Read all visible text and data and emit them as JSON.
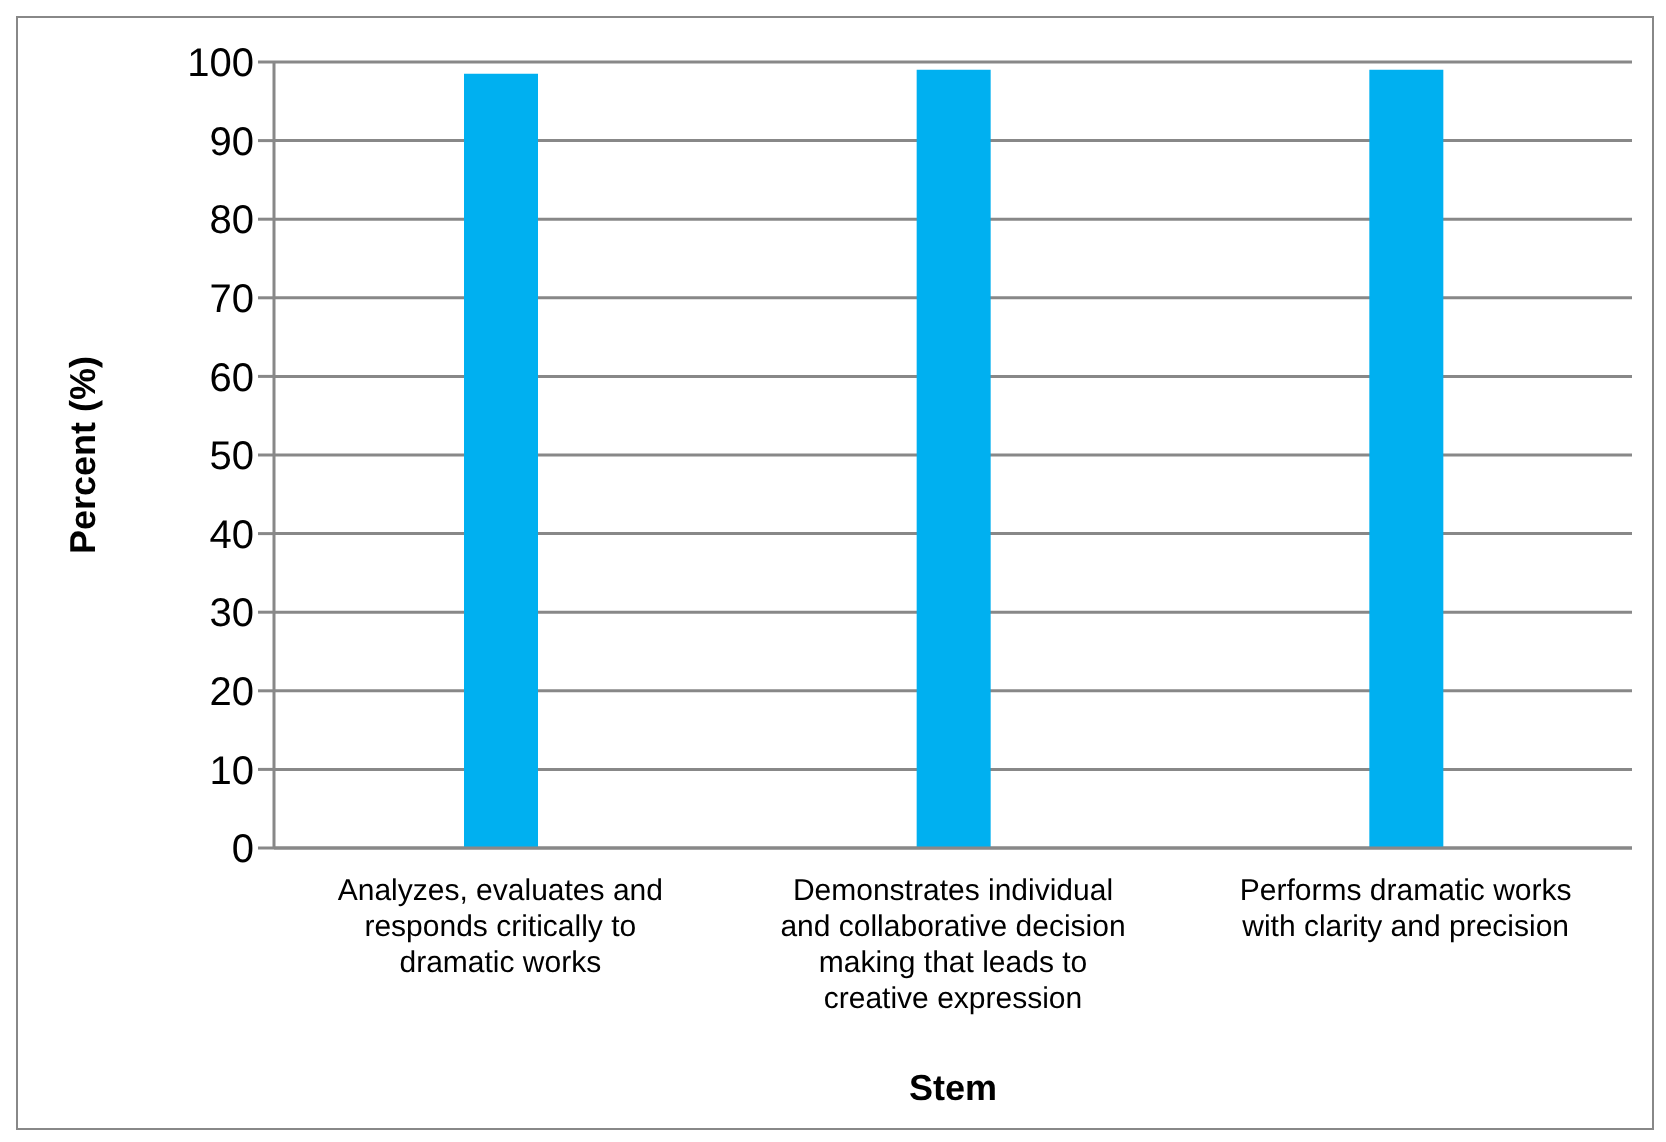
{
  "chart_data": {
    "type": "bar",
    "xlabel": "Stem",
    "ylabel": "Percent (%)",
    "categories": [
      "Analyzes, evaluates and responds critically to dramatic works",
      "Demonstrates individual and collaborative decision making that leads to creative expression",
      "Performs dramatic works with clarity and precision"
    ],
    "values": [
      98.5,
      99,
      99
    ],
    "color": "#00b0f0",
    "ylim": [
      0,
      100
    ],
    "yticks": [
      0,
      10,
      20,
      30,
      40,
      50,
      60,
      70,
      80,
      90,
      100
    ],
    "grid": "y"
  }
}
